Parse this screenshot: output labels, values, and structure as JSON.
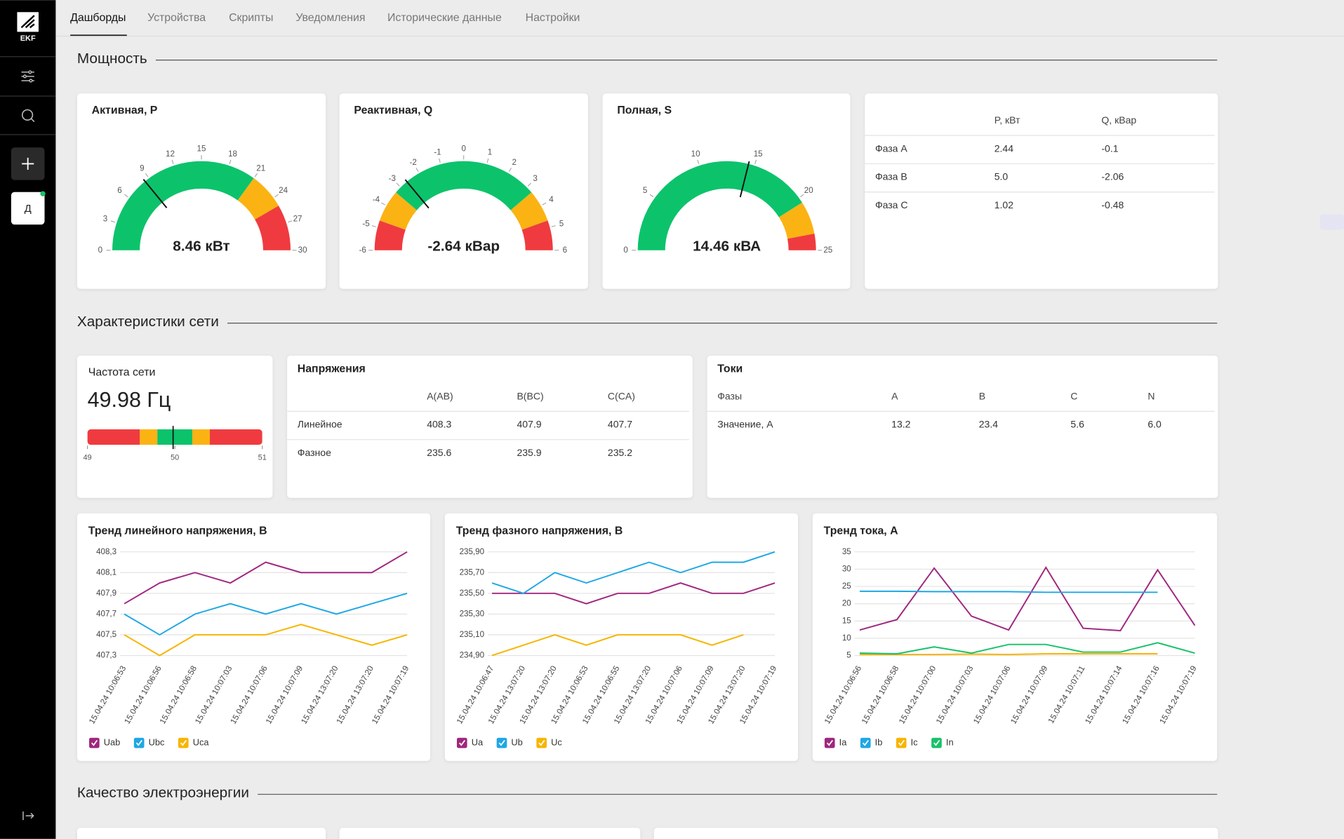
{
  "sidebar": {
    "logo": "EKF",
    "user": "Д"
  },
  "tabs": [
    "Дашборды",
    "Устройства",
    "Скрипты",
    "Уведомления",
    "Исторические данные",
    "Настройки"
  ],
  "sections": [
    "Мощность",
    "Характеристики сети",
    "Качество электроэнергии"
  ],
  "gauges": [
    {
      "title": "Активная, P",
      "readout": "8.46 кВт",
      "value": 8.46,
      "range": [
        0,
        30
      ],
      "ticks": [
        0,
        3,
        6,
        9,
        12,
        15,
        18,
        21,
        24,
        27,
        30
      ],
      "zones": [
        {
          "from": 0,
          "to": 21,
          "color": "#0cc36b"
        },
        {
          "from": 21,
          "to": 25,
          "color": "#fbb313"
        },
        {
          "from": 25,
          "to": 30,
          "color": "#ef3b3f"
        }
      ]
    },
    {
      "title": "Реактивная, Q",
      "readout": "-2.64 кВар",
      "value": -2.64,
      "range": [
        -6,
        6
      ],
      "ticks": [
        -6,
        -5,
        -4,
        -3,
        -2,
        -1,
        0,
        1,
        2,
        3,
        4,
        5,
        6
      ],
      "zones": [
        {
          "from": -6,
          "to": -4.7,
          "color": "#ef3b3f"
        },
        {
          "from": -4.7,
          "to": -3.3,
          "color": "#fbb313"
        },
        {
          "from": -3.3,
          "to": 3.3,
          "color": "#0cc36b"
        },
        {
          "from": 3.3,
          "to": 4.7,
          "color": "#fbb313"
        },
        {
          "from": 4.7,
          "to": 6,
          "color": "#ef3b3f"
        }
      ]
    },
    {
      "title": "Полная, S",
      "readout": "14.46 кВА",
      "value": 14.46,
      "range": [
        0,
        25
      ],
      "ticks": [
        0,
        5,
        10,
        15,
        20,
        25
      ],
      "zones": [
        {
          "from": 0,
          "to": 20.5,
          "color": "#0cc36b"
        },
        {
          "from": 20.5,
          "to": 23.5,
          "color": "#fbb313"
        },
        {
          "from": 23.5,
          "to": 25,
          "color": "#ef3b3f"
        }
      ]
    }
  ],
  "power_table": {
    "columns": [
      "P, кВт",
      "Q, кВар"
    ],
    "rows": [
      {
        "name": "Фаза A",
        "cells": [
          "2.44",
          "-0.1"
        ]
      },
      {
        "name": "Фаза B",
        "cells": [
          "5.0",
          "-2.06"
        ]
      },
      {
        "name": "Фаза C",
        "cells": [
          "1.02",
          "-0.48"
        ]
      }
    ]
  },
  "frequency": {
    "title": "Частота сети",
    "readout": "49.98 Гц",
    "value": 49.98,
    "range": [
      49,
      51
    ],
    "ticks": [
      49,
      50,
      51
    ],
    "zones": [
      {
        "from": 49,
        "to": 49.6,
        "color": "#ef3b3f"
      },
      {
        "from": 49.6,
        "to": 49.8,
        "color": "#fbb313"
      },
      {
        "from": 49.8,
        "to": 50.2,
        "color": "#0cc36b"
      },
      {
        "from": 50.2,
        "to": 50.4,
        "color": "#fbb313"
      },
      {
        "from": 50.4,
        "to": 51,
        "color": "#ef3b3f"
      }
    ]
  },
  "voltage_table": {
    "title": "Напряжения",
    "columns": [
      "A(AB)",
      "B(BC)",
      "C(CA)"
    ],
    "rows": [
      {
        "name": "Линейное",
        "cells": [
          "408.3",
          "407.9",
          "407.7"
        ]
      },
      {
        "name": "Фазное",
        "cells": [
          "235.6",
          "235.9",
          "235.2"
        ]
      }
    ]
  },
  "current_table": {
    "title": "Токи",
    "header": "Фазы",
    "columns": [
      "A",
      "B",
      "C",
      "N"
    ],
    "rows": [
      {
        "name": "Значение, А",
        "cells": [
          "13.2",
          "23.4",
          "5.6",
          "6.0"
        ]
      }
    ]
  },
  "chart_data": [
    {
      "type": "line",
      "title": "Тренд линейного напряжения, В",
      "grid": true,
      "legend": "bottom-left",
      "categories": [
        "15.04.24 10:06:53",
        "15.04.24 10:06:56",
        "15.04.24 10:06:58",
        "15.04.24 10:07:03",
        "15.04.24 10:07:06",
        "15.04.24 10:07:09",
        "15.04.24 13:07:20",
        "15.04.24 13:07:20",
        "15.04.24 10:07:19"
      ],
      "series": [
        {
          "name": "Uab",
          "color": "#a0267f",
          "values": [
            407.8,
            408.0,
            408.1,
            408.0,
            408.2,
            408.1,
            408.1,
            408.1,
            408.3
          ]
        },
        {
          "name": "Ubc",
          "color": "#1ea7e4",
          "values": [
            407.7,
            407.5,
            407.7,
            407.8,
            407.7,
            407.8,
            407.7,
            407.8,
            407.9
          ]
        },
        {
          "name": "Uca",
          "color": "#f7b500",
          "values": [
            407.5,
            407.3,
            407.5,
            407.5,
            407.5,
            407.6,
            407.5,
            407.4,
            407.5
          ]
        }
      ],
      "ylim": [
        407.3,
        408.3
      ],
      "yticks": [
        {
          "value": 407.3,
          "label": "407,3"
        },
        {
          "value": 407.5,
          "label": "407,5"
        },
        {
          "value": 407.7,
          "label": "407,7"
        },
        {
          "value": 407.9,
          "label": "407,9"
        },
        {
          "value": 408.1,
          "label": "408,1"
        },
        {
          "value": 408.3,
          "label": "408,3"
        }
      ]
    },
    {
      "type": "line",
      "title": "Тренд фазного напряжения, В",
      "grid": true,
      "legend": "bottom-left",
      "categories": [
        "15.04.24 10:06:47",
        "15.04.24 13:07:20",
        "15.04.24 13:07:20",
        "15.04.24 10:06:53",
        "15.04.24 10:06:55",
        "15.04.24 13:07:20",
        "15.04.24 10:07:06",
        "15.04.24 10:07:09",
        "15.04.24 13:07:20",
        "15.04.24 10:07:19"
      ],
      "series": [
        {
          "name": "Ua",
          "color": "#a0267f",
          "values": [
            235.5,
            235.5,
            235.5,
            235.4,
            235.5,
            235.5,
            235.6,
            235.5,
            235.5,
            235.6
          ]
        },
        {
          "name": "Ub",
          "color": "#1ea7e4",
          "values": [
            235.6,
            235.5,
            235.7,
            235.6,
            235.7,
            235.8,
            235.7,
            235.8,
            235.8,
            235.9
          ]
        },
        {
          "name": "Uc",
          "color": "#f7b500",
          "values": [
            234.9,
            235.0,
            235.1,
            235.0,
            235.1,
            235.1,
            235.1,
            235.0,
            235.1,
            null
          ]
        }
      ],
      "ylim": [
        234.9,
        235.9
      ],
      "yticks": [
        {
          "value": 234.9,
          "label": "234,90"
        },
        {
          "value": 235.1,
          "label": "235,10"
        },
        {
          "value": 235.3,
          "label": "235,30"
        },
        {
          "value": 235.5,
          "label": "235,50"
        },
        {
          "value": 235.7,
          "label": "235,70"
        },
        {
          "value": 235.9,
          "label": "235,90"
        }
      ]
    },
    {
      "type": "line",
      "title": "Тренд тока, А",
      "grid": true,
      "legend": "bottom-left",
      "categories": [
        "15.04.24 10:06:56",
        "15.04.24 10:06:58",
        "15.04.24 10:07:00",
        "15.04.24 10:07:03",
        "15.04.24 10:07:06",
        "15.04.24 10:07:09",
        "15.04.24 10:07:11",
        "15.04.24 10:07:14",
        "15.04.24 10:07:16",
        "15.04.24 10:07:19"
      ],
      "series": [
        {
          "name": "Ia",
          "color": "#a0267f",
          "values": [
            12.4,
            15.4,
            30.3,
            16.4,
            12.4,
            30.5,
            12.9,
            12.2,
            29.8,
            13.7
          ]
        },
        {
          "name": "Ib",
          "color": "#1ea7e4",
          "values": [
            23.6,
            23.6,
            23.5,
            23.5,
            23.5,
            23.3,
            23.3,
            23.3,
            23.3,
            null
          ]
        },
        {
          "name": "Ic",
          "color": "#f7b500",
          "values": [
            5.3,
            5.3,
            5.3,
            5.4,
            5.3,
            5.5,
            5.5,
            5.5,
            5.5,
            null
          ]
        },
        {
          "name": "In",
          "color": "#17c26a",
          "values": [
            5.7,
            5.5,
            7.5,
            5.7,
            8.2,
            8.2,
            6.0,
            6.0,
            8.7,
            5.7
          ]
        }
      ],
      "ylim": [
        5,
        35
      ],
      "yticks": [
        5,
        10,
        15,
        20,
        25,
        30,
        35
      ]
    }
  ]
}
